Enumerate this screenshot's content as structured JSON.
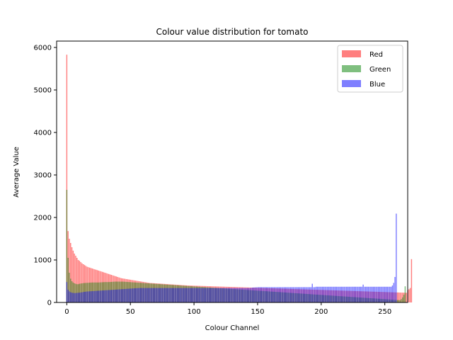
{
  "chart_data": {
    "type": "bar",
    "title": "Colour value distribution for tomato",
    "xlabel": "Colour Channel",
    "ylabel": "Average Value",
    "xlim": [
      -8,
      268
    ],
    "ylim": [
      0,
      6150
    ],
    "xticks": [
      0,
      50,
      100,
      150,
      200,
      250
    ],
    "yticks": [
      0,
      1000,
      2000,
      3000,
      4000,
      5000,
      6000
    ],
    "grid": false,
    "legend_position": "top-right",
    "bar_alpha": 0.5,
    "x_range": [
      0,
      255
    ],
    "series": [
      {
        "name": "Red",
        "color": "#ff0000",
        "values": [
          5830,
          1680,
          1500,
          1400,
          1300,
          1220,
          1150,
          1100,
          1050,
          1000,
          980,
          950,
          920,
          900,
          880,
          860,
          840,
          830,
          820,
          810,
          800,
          790,
          780,
          770,
          760,
          750,
          740,
          730,
          720,
          710,
          700,
          690,
          680,
          670,
          660,
          650,
          640,
          630,
          620,
          610,
          600,
          590,
          580,
          570,
          565,
          560,
          555,
          550,
          545,
          540,
          535,
          530,
          525,
          520,
          515,
          510,
          505,
          500,
          495,
          490,
          485,
          480,
          475,
          470,
          465,
          460,
          458,
          456,
          454,
          452,
          450,
          448,
          446,
          444,
          442,
          440,
          438,
          436,
          434,
          432,
          430,
          428,
          426,
          424,
          422,
          420,
          418,
          416,
          414,
          412,
          410,
          408,
          406,
          404,
          402,
          400,
          399,
          398,
          397,
          396,
          395,
          394,
          393,
          392,
          391,
          390,
          389,
          388,
          387,
          386,
          385,
          384,
          383,
          382,
          381,
          380,
          379,
          378,
          377,
          376,
          375,
          374,
          373,
          372,
          371,
          370,
          369,
          368,
          367,
          366,
          365,
          364,
          363,
          362,
          361,
          360,
          359,
          358,
          357,
          356,
          355,
          354,
          353,
          352,
          351,
          350,
          349,
          348,
          347,
          346,
          345,
          344,
          343,
          342,
          341,
          340,
          339,
          338,
          337,
          336,
          335,
          334,
          333,
          332,
          331,
          330,
          329,
          328,
          327,
          326,
          325,
          324,
          323,
          322,
          321,
          320,
          319,
          318,
          317,
          316,
          315,
          314,
          313,
          312,
          311,
          310,
          309,
          308,
          307,
          306,
          305,
          304,
          303,
          302,
          301,
          300,
          299,
          298,
          297,
          296,
          295,
          294,
          293,
          292,
          291,
          290,
          289,
          288,
          287,
          286,
          285,
          284,
          283,
          282,
          281,
          280,
          279,
          278,
          277,
          276,
          275,
          274,
          273,
          272,
          271,
          270,
          269,
          268,
          267,
          266,
          265,
          264,
          263,
          262,
          261,
          260,
          259,
          258,
          257,
          256,
          255,
          254,
          253,
          252,
          251,
          250,
          249,
          248,
          247,
          246,
          245,
          244,
          243,
          242,
          241,
          240,
          239,
          238,
          237,
          236,
          235,
          234,
          233,
          232,
          231,
          230,
          229,
          228,
          290,
          310,
          340,
          1020
        ]
      },
      {
        "name": "Green",
        "color": "#008000",
        "values": [
          2650,
          1050,
          700,
          560,
          500,
          470,
          450,
          440,
          430,
          430,
          440,
          445,
          450,
          455,
          458,
          460,
          462,
          464,
          466,
          468,
          470,
          470,
          470,
          470,
          470,
          470,
          472,
          474,
          476,
          478,
          480,
          480,
          480,
          480,
          482,
          484,
          486,
          488,
          490,
          490,
          490,
          490,
          490,
          490,
          490,
          488,
          486,
          484,
          482,
          480,
          478,
          476,
          474,
          472,
          470,
          468,
          466,
          464,
          462,
          460,
          458,
          456,
          454,
          452,
          450,
          448,
          446,
          444,
          442,
          440,
          438,
          436,
          434,
          432,
          430,
          428,
          426,
          424,
          422,
          420,
          418,
          416,
          414,
          412,
          410,
          408,
          406,
          404,
          402,
          400,
          398,
          396,
          394,
          392,
          390,
          388,
          386,
          384,
          382,
          380,
          378,
          376,
          374,
          372,
          370,
          368,
          366,
          364,
          362,
          360,
          358,
          356,
          354,
          352,
          350,
          348,
          346,
          344,
          342,
          340,
          338,
          336,
          334,
          332,
          330,
          328,
          326,
          324,
          322,
          320,
          318,
          316,
          314,
          312,
          310,
          308,
          306,
          304,
          302,
          300,
          298,
          296,
          294,
          292,
          290,
          288,
          286,
          284,
          282,
          280,
          278,
          276,
          274,
          272,
          270,
          268,
          266,
          264,
          262,
          260,
          258,
          256,
          254,
          252,
          250,
          248,
          246,
          244,
          242,
          240,
          238,
          236,
          234,
          232,
          230,
          228,
          226,
          224,
          222,
          220,
          218,
          216,
          214,
          212,
          210,
          208,
          206,
          204,
          202,
          200,
          198,
          196,
          194,
          192,
          190,
          188,
          186,
          184,
          182,
          180,
          178,
          176,
          174,
          172,
          170,
          168,
          166,
          164,
          162,
          160,
          158,
          156,
          154,
          152,
          150,
          148,
          146,
          144,
          142,
          140,
          138,
          136,
          134,
          132,
          130,
          128,
          126,
          124,
          122,
          120,
          118,
          116,
          114,
          112,
          110,
          108,
          106,
          104,
          102,
          100,
          98,
          96,
          94,
          92,
          90,
          88,
          86,
          84,
          82,
          80,
          78,
          76,
          74,
          72,
          70,
          68,
          66,
          64,
          62,
          60,
          58,
          56,
          54,
          80,
          120,
          180,
          380
        ]
      },
      {
        "name": "Blue",
        "color": "#0000ff",
        "values": [
          480,
          300,
          260,
          240,
          230,
          225,
          220,
          222,
          225,
          228,
          230,
          235,
          240,
          245,
          250,
          255,
          258,
          260,
          262,
          264,
          266,
          268,
          270,
          272,
          274,
          276,
          278,
          280,
          282,
          284,
          286,
          288,
          290,
          292,
          294,
          296,
          298,
          300,
          302,
          304,
          306,
          308,
          310,
          312,
          314,
          316,
          318,
          320,
          322,
          324,
          326,
          328,
          330,
          332,
          334,
          336,
          338,
          340,
          340,
          340,
          340,
          340,
          340,
          340,
          340,
          340,
          340,
          340,
          340,
          340,
          340,
          340,
          340,
          340,
          340,
          340,
          340,
          340,
          340,
          340,
          340,
          340,
          340,
          340,
          340,
          340,
          340,
          340,
          340,
          340,
          340,
          340,
          340,
          340,
          340,
          340,
          340,
          340,
          340,
          340,
          340,
          340,
          340,
          340,
          340,
          340,
          340,
          340,
          340,
          340,
          340,
          340,
          340,
          340,
          340,
          340,
          340,
          340,
          340,
          340,
          340,
          340,
          340,
          340,
          340,
          340,
          340,
          340,
          340,
          340,
          340,
          340,
          340,
          340,
          340,
          340,
          340,
          340,
          340,
          340,
          340,
          340,
          340,
          340,
          340,
          345,
          350,
          352,
          354,
          356,
          358,
          360,
          360,
          360,
          360,
          360,
          360,
          360,
          360,
          360,
          360,
          360,
          360,
          360,
          360,
          360,
          360,
          360,
          360,
          360,
          360,
          360,
          360,
          360,
          360,
          360,
          360,
          360,
          360,
          360,
          360,
          360,
          360,
          360,
          360,
          360,
          360,
          360,
          360,
          360,
          360,
          360,
          360,
          440,
          360,
          360,
          370,
          370,
          370,
          370,
          370,
          370,
          370,
          370,
          370,
          370,
          370,
          370,
          370,
          370,
          370,
          370,
          370,
          370,
          370,
          370,
          370,
          370,
          370,
          370,
          370,
          370,
          370,
          370,
          370,
          370,
          370,
          370,
          370,
          370,
          370,
          370,
          370,
          420,
          370,
          370,
          370,
          370,
          370,
          370,
          370,
          370,
          370,
          370,
          370,
          370,
          370,
          370,
          370,
          370,
          370,
          370,
          370,
          370,
          370,
          370,
          400,
          460,
          600,
          2090
        ]
      }
    ]
  }
}
